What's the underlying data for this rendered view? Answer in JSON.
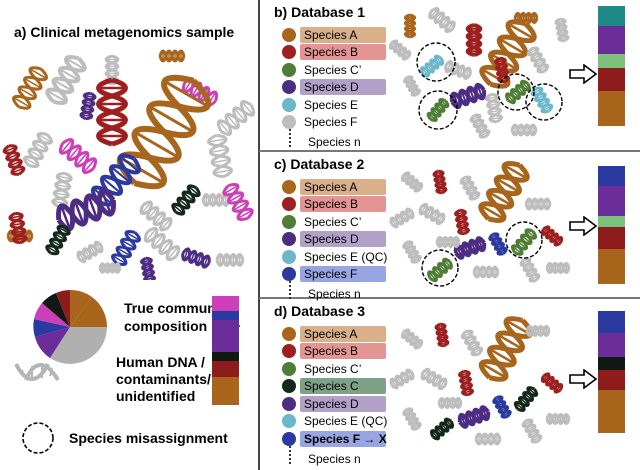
{
  "panel_a": {
    "title": "a) Clinical metagenomics sample",
    "legend": {
      "true_composition": [
        "True community",
        "composition"
      ],
      "human_dna": [
        "Human DNA /",
        "contaminants/",
        "unidentified"
      ],
      "misassignment": "Species misassignment"
    },
    "true_bar": [
      {
        "color": "#cc3fb8",
        "fraction": 0.12
      },
      {
        "color": "#2a3aa0",
        "fraction": 0.07
      },
      {
        "color": "#6a2d9a",
        "fraction": 0.25
      },
      {
        "color": "#101a12",
        "fraction": 0.07
      },
      {
        "color": "#8e1c1c",
        "fraction": 0.13
      },
      {
        "color": "#a8651b",
        "fraction": 0.22
      }
    ]
  },
  "databases": [
    {
      "title": "b) Database 1",
      "species": [
        {
          "label": "Species A",
          "dot": "#a8651b",
          "hl": "#d9b08a"
        },
        {
          "label": "Species B",
          "dot": "#9e1f1f",
          "hl": "#e59494"
        },
        {
          "label": "Species C’",
          "dot": "#4e7d35",
          "hl": ""
        },
        {
          "label": "Species D",
          "dot": "#4d2d84",
          "hl": "#b2a0c8"
        },
        {
          "label": "Species E",
          "dot": "#6ab8c9",
          "hl": ""
        },
        {
          "label": "Species F",
          "dot": "#bdbdbd",
          "hl": ""
        }
      ],
      "more": "Species n",
      "bar": [
        {
          "color": "#1e8a86",
          "fraction": 0.17
        },
        {
          "color": "#6a2d9a",
          "fraction": 0.23
        },
        {
          "color": "#7cc27c",
          "fraction": 0.12
        },
        {
          "color": "#8e1c1c",
          "fraction": 0.19
        },
        {
          "color": "#a8651b",
          "fraction": 0.29
        }
      ]
    },
    {
      "title": "c) Database 2",
      "species": [
        {
          "label": "Species A",
          "dot": "#a8651b",
          "hl": "#d9b08a"
        },
        {
          "label": "Species B",
          "dot": "#9e1f1f",
          "hl": "#e59494"
        },
        {
          "label": "Species C’",
          "dot": "#4e7d35",
          "hl": ""
        },
        {
          "label": "Species D",
          "dot": "#4d2d84",
          "hl": "#b2a0c8"
        },
        {
          "label": "Species E (QC)",
          "dot": "#6ab8c9",
          "hl": ""
        },
        {
          "label": "Species F",
          "dot": "#2a3aa0",
          "hl": "#97a6e3"
        }
      ],
      "more": "Species n",
      "bar": [
        {
          "color": "#2a3aa0",
          "fraction": 0.17
        },
        {
          "color": "#6a2d9a",
          "fraction": 0.25
        },
        {
          "color": "#7cc27c",
          "fraction": 0.1
        },
        {
          "color": "#8e1c1c",
          "fraction": 0.18
        },
        {
          "color": "#a8651b",
          "fraction": 0.3
        }
      ]
    },
    {
      "title": "d) Database 3",
      "species": [
        {
          "label": "Species A",
          "dot": "#a8651b",
          "hl": "#d9b08a"
        },
        {
          "label": "Species B",
          "dot": "#9e1f1f",
          "hl": "#e59494"
        },
        {
          "label": "Species C’",
          "dot": "#4e7d35",
          "hl": ""
        },
        {
          "label": "Species C",
          "dot": "#13281a",
          "hl": "#7fa287"
        },
        {
          "label": "Species D",
          "dot": "#4d2d84",
          "hl": "#b2a0c8"
        },
        {
          "label": "Species E (QC)",
          "dot": "#6ab8c9",
          "hl": ""
        },
        {
          "label": "Species F → X",
          "dot": "#2a3aa0",
          "hl": "#97a6e3"
        }
      ],
      "more": "Species n",
      "bar": [
        {
          "color": "#2a3aa0",
          "fraction": 0.18
        },
        {
          "color": "#6a2d9a",
          "fraction": 0.2
        },
        {
          "color": "#101a12",
          "fraction": 0.1
        },
        {
          "color": "#8e1c1c",
          "fraction": 0.17
        },
        {
          "color": "#a8651b",
          "fraction": 0.35
        }
      ]
    }
  ],
  "colors": {
    "species_a": "#a8651b",
    "species_b": "#9e1f1f",
    "species_c_prime": "#4e7d35",
    "species_c": "#13281a",
    "species_d": "#4d2d84",
    "species_e": "#6ab8c9",
    "species_f": "#2a3aa0",
    "magenta": "#cc3fb8",
    "human_gray": "#bdbdbd"
  },
  "icons": [
    "dna-helix-icon",
    "arrow-right-icon",
    "dashed-circle-icon",
    "pie-chart-icon",
    "stacked-bar-icon"
  ]
}
